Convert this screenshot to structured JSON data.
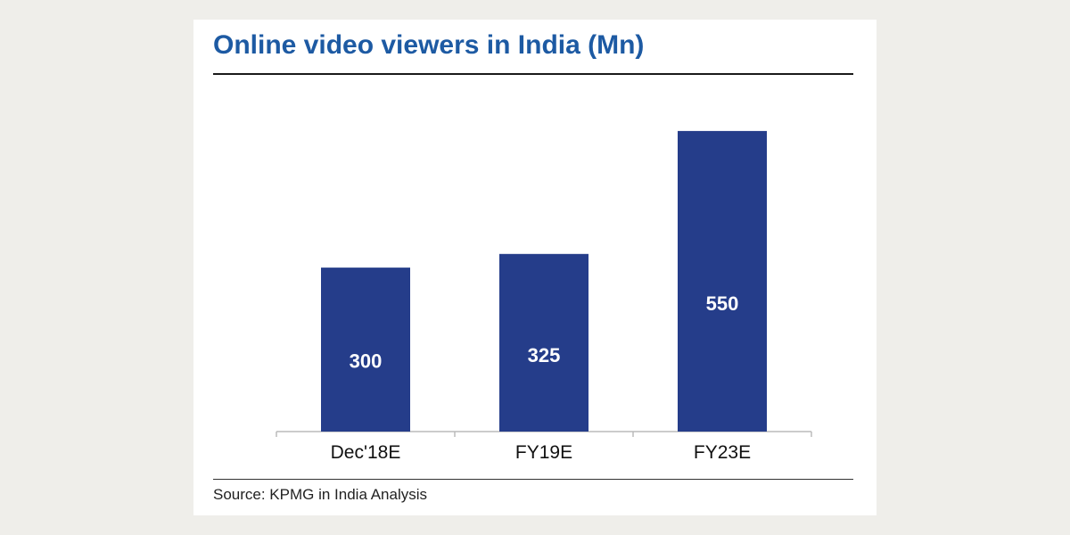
{
  "chart_data": {
    "type": "bar",
    "title": "Online video viewers in India (Mn)",
    "categories": [
      "Dec'18E",
      "FY19E",
      "FY23E"
    ],
    "values": [
      300,
      325,
      550
    ],
    "data_labels": [
      "300",
      "325",
      "550"
    ],
    "bar_color": "#253d8a",
    "axis_color": "#bbbbbb",
    "ylim": [
      0,
      620
    ],
    "grid": false,
    "legend": "none",
    "source": "Source: KPMG in India Analysis"
  },
  "colors": {
    "title": "#1d5aa3",
    "background": "#efeeea",
    "card": "#ffffff"
  }
}
